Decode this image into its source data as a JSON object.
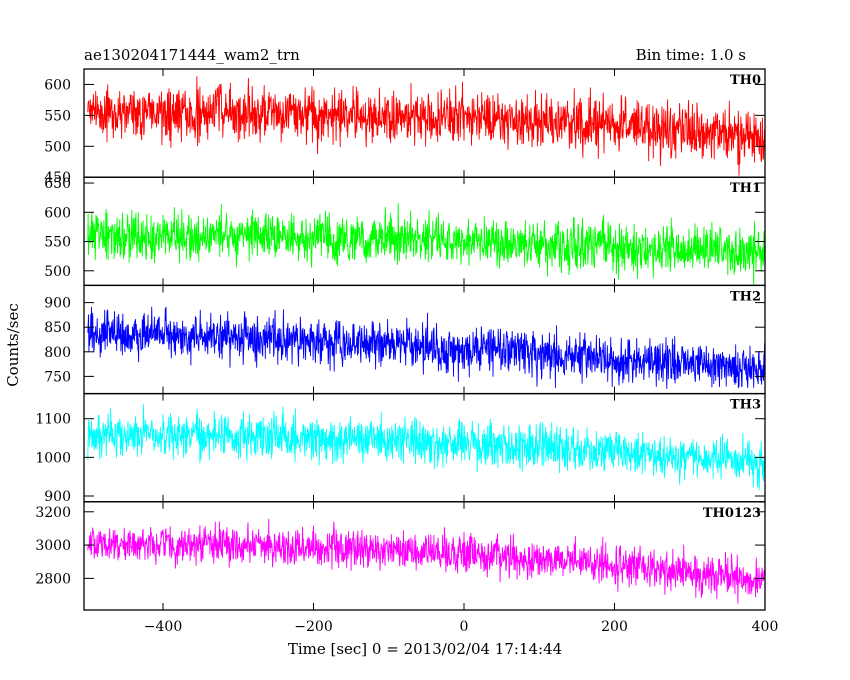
{
  "chart_data": {
    "type": "line",
    "title": "ae130204171444_wam2_trn",
    "subtitle": "Bin time: 1.0 s",
    "xlabel": "Time [sec] 0 = 2013/02/04 17:14:44",
    "ylabel": "Counts/sec",
    "xlim": [
      -505,
      400
    ],
    "x_ticks": [
      -400,
      -200,
      0,
      200,
      400
    ],
    "bin_time_s": 1.0,
    "series": [
      {
        "name": "TH0",
        "color": "#ff0000",
        "ylim": [
          450,
          625
        ],
        "y_ticks": [
          450,
          500,
          550,
          600
        ],
        "trend_x": [
          -500,
          -300,
          -100,
          0,
          100,
          200,
          300,
          400
        ],
        "trend_y": [
          555,
          552,
          548,
          545,
          540,
          535,
          525,
          510
        ],
        "spread": 30
      },
      {
        "name": "TH1",
        "color": "#00ff00",
        "ylim": [
          475,
          660
        ],
        "y_ticks": [
          500,
          550,
          600,
          650
        ],
        "trend_x": [
          -500,
          -300,
          -100,
          0,
          100,
          200,
          300,
          400
        ],
        "trend_y": [
          560,
          560,
          555,
          550,
          545,
          540,
          535,
          530
        ],
        "spread": 28
      },
      {
        "name": "TH2",
        "color": "#0000ff",
        "ylim": [
          715,
          935
        ],
        "y_ticks": [
          750,
          800,
          850,
          900
        ],
        "trend_x": [
          -500,
          -300,
          -100,
          0,
          100,
          200,
          300,
          400
        ],
        "trend_y": [
          835,
          830,
          815,
          805,
          795,
          785,
          775,
          765
        ],
        "spread": 32
      },
      {
        "name": "TH3",
        "color": "#00ffff",
        "ylim": [
          885,
          1165
        ],
        "y_ticks": [
          900,
          1000,
          1100
        ],
        "trend_x": [
          -500,
          -300,
          -100,
          0,
          100,
          200,
          300,
          400
        ],
        "trend_y": [
          1055,
          1055,
          1045,
          1035,
          1025,
          1015,
          1000,
          990
        ],
        "spread": 40
      },
      {
        "name": "TH0123",
        "color": "#ff00ff",
        "ylim": [
          2610,
          3260
        ],
        "y_ticks": [
          2800,
          3000,
          3200
        ],
        "trend_x": [
          -500,
          -300,
          -100,
          0,
          100,
          200,
          300,
          400
        ],
        "trend_y": [
          3010,
          3000,
          2970,
          2940,
          2910,
          2880,
          2830,
          2790
        ],
        "spread": 80
      }
    ]
  }
}
